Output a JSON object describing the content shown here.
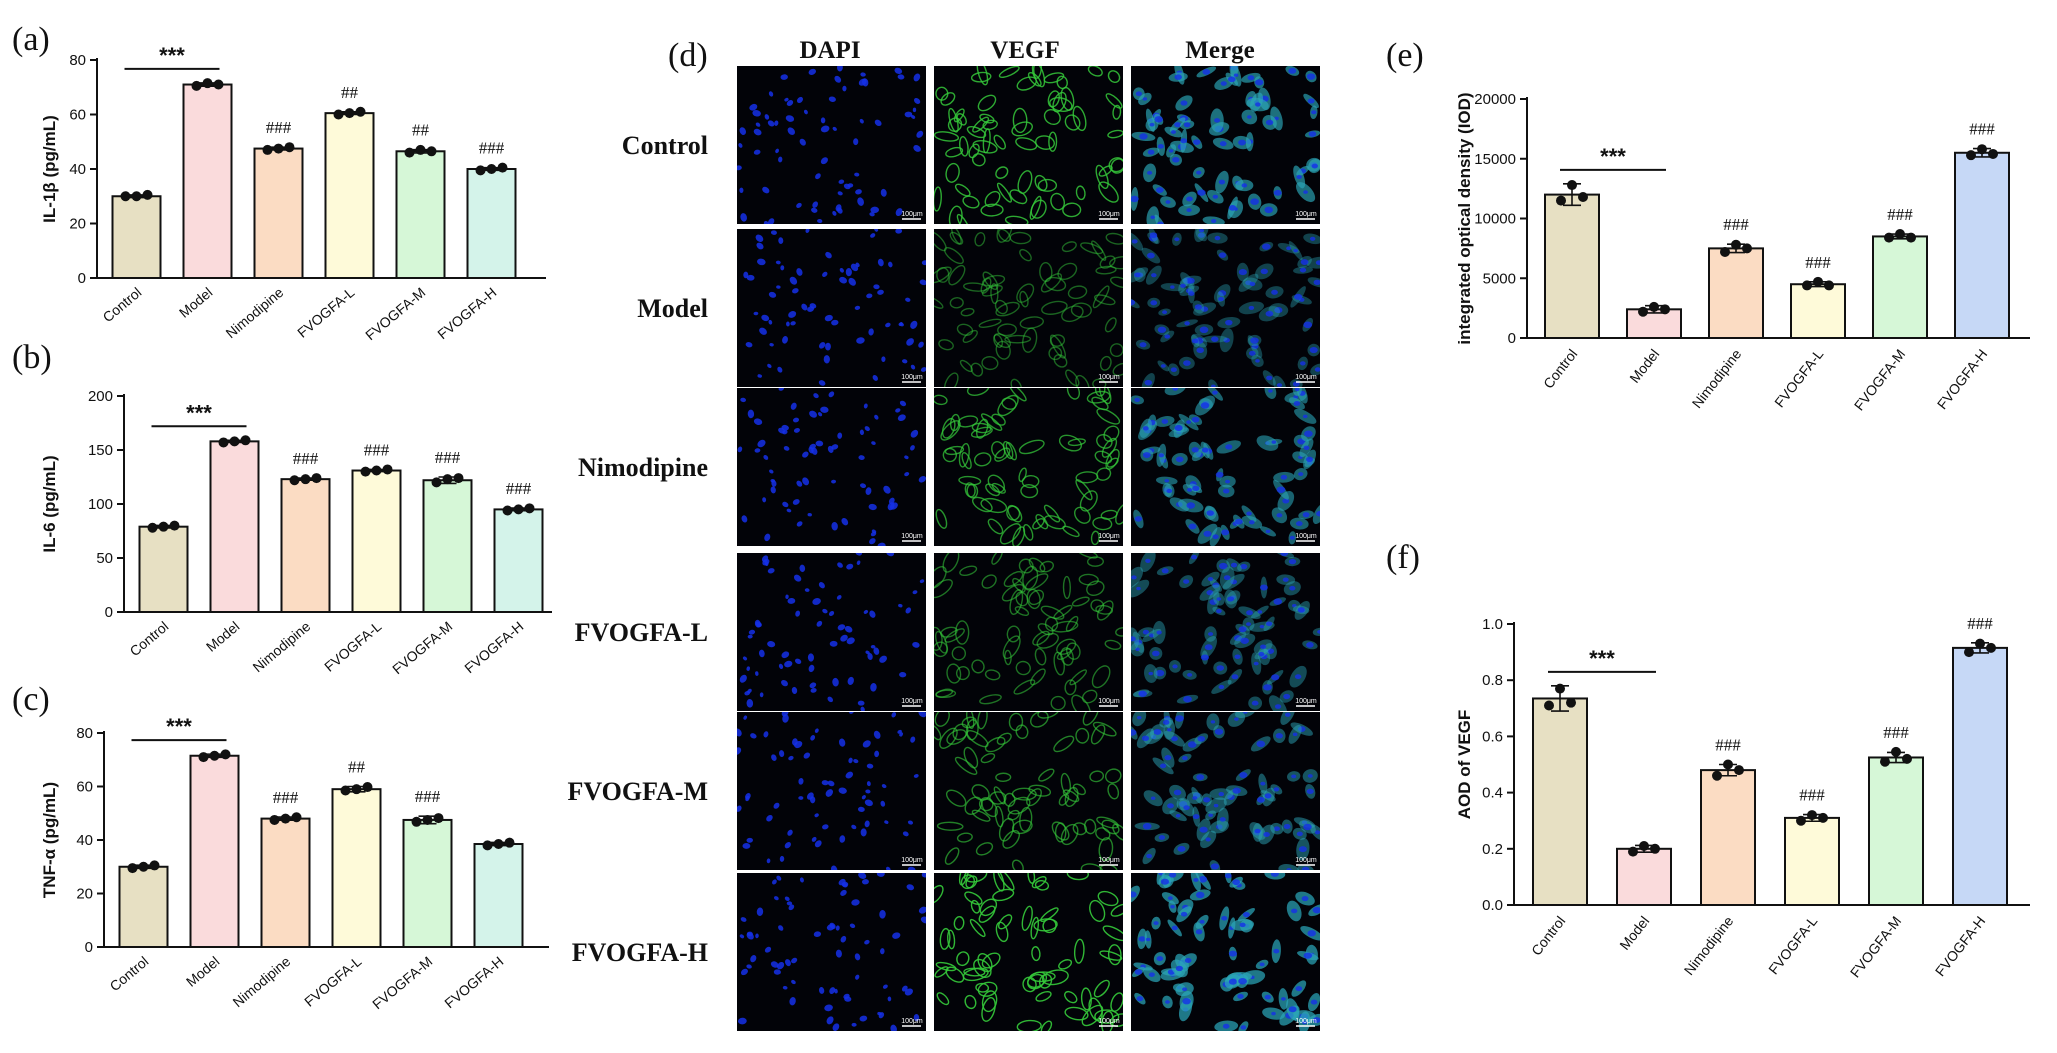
{
  "panel_letters": {
    "a": "(a)",
    "b": "(b)",
    "c": "(c)",
    "d": "(d)",
    "e": "(e)",
    "f": "(f)"
  },
  "chart_data": [
    {
      "id": "a",
      "type": "bar",
      "categories": [
        "Control",
        "Model",
        "Nimodipine",
        "FVOGFA-L",
        "FVOGFA-M",
        "FVOGFA-H"
      ],
      "values": [
        30,
        71,
        47.5,
        60.5,
        46.5,
        40
      ],
      "points": [
        [
          30,
          30,
          30.5
        ],
        [
          70.5,
          71.5,
          71
        ],
        [
          47,
          47.5,
          48
        ],
        [
          60,
          60.5,
          61
        ],
        [
          46,
          47,
          46.5
        ],
        [
          39.5,
          40,
          40.5
        ]
      ],
      "sd": [
        0.5,
        0.6,
        0.5,
        0.5,
        0.6,
        0.5
      ],
      "ylabel": "IL-1β (pg/mL)",
      "ylim": [
        0,
        80
      ],
      "yticks": [
        0,
        20,
        40,
        60,
        80
      ],
      "annotations": [
        "",
        "",
        "###",
        "##",
        "##",
        "###"
      ],
      "bracket": "***"
    },
    {
      "id": "b",
      "type": "bar",
      "categories": [
        "Control",
        "Model",
        "Nimodipine",
        "FVOGFA-L",
        "FVOGFA-M",
        "FVOGFA-H"
      ],
      "values": [
        79,
        158,
        123,
        131,
        122,
        95
      ],
      "points": [
        [
          78,
          79,
          80
        ],
        [
          157,
          158,
          159
        ],
        [
          122,
          123,
          124
        ],
        [
          130,
          131,
          132
        ],
        [
          120,
          123,
          124
        ],
        [
          94,
          95,
          96
        ]
      ],
      "sd": [
        1.2,
        1.0,
        1.0,
        1.0,
        3.0,
        1.2
      ],
      "ylabel": "IL-6 (pg/mL)",
      "ylim": [
        0,
        200
      ],
      "yticks": [
        0,
        50,
        100,
        150,
        200
      ],
      "annotations": [
        "",
        "",
        "###",
        "###",
        "###",
        "###"
      ],
      "bracket": "***"
    },
    {
      "id": "c",
      "type": "bar",
      "categories": [
        "Control",
        "Model",
        "Nimodipine",
        "FVOGFA-L",
        "FVOGFA-M",
        "FVOGFA-H"
      ],
      "values": [
        30,
        71.5,
        48,
        59,
        47.5,
        38.5
      ],
      "points": [
        [
          29.5,
          30,
          30.5
        ],
        [
          71,
          71.5,
          72
        ],
        [
          47.5,
          48,
          48.5
        ],
        [
          58.5,
          59,
          59.8
        ],
        [
          46.8,
          47.5,
          48.2
        ],
        [
          38,
          38.5,
          39
        ]
      ],
      "sd": [
        0.6,
        0.6,
        0.6,
        1.0,
        1.4,
        0.6
      ],
      "ylabel": "TNF-α (pg/mL)",
      "ylim": [
        0,
        80
      ],
      "yticks": [
        0,
        20,
        40,
        60,
        80
      ],
      "annotations": [
        "",
        "",
        "###",
        "##",
        "###",
        ""
      ],
      "bracket": "***"
    },
    {
      "id": "e",
      "type": "bar",
      "categories": [
        "Control",
        "Model",
        "Nimodipine",
        "FVOGFA-L",
        "FVOGFA-M",
        "FVOGFA-H"
      ],
      "values": [
        12000,
        2400,
        7500,
        4500,
        8500,
        15500
      ],
      "points": [
        [
          11500,
          12800,
          11800
        ],
        [
          2200,
          2600,
          2400
        ],
        [
          7200,
          7800,
          7500
        ],
        [
          4400,
          4700,
          4400
        ],
        [
          8400,
          8700,
          8400
        ],
        [
          15300,
          15800,
          15400
        ]
      ],
      "sd": [
        900,
        300,
        350,
        200,
        200,
        350
      ],
      "ylabel": "integrated optical density (IOD)",
      "ylim": [
        0,
        20000
      ],
      "yticks": [
        0,
        5000,
        10000,
        15000,
        20000
      ],
      "annotations": [
        "",
        "",
        "###",
        "###",
        "###",
        "###"
      ],
      "bracket": "***"
    },
    {
      "id": "f",
      "type": "bar",
      "categories": [
        "Control",
        "Model",
        "Nimodipine",
        "FVOGFA-L",
        "FVOGFA-M",
        "FVOGFA-H"
      ],
      "values": [
        0.735,
        0.2,
        0.48,
        0.31,
        0.525,
        0.915
      ],
      "points": [
        [
          0.71,
          0.77,
          0.72
        ],
        [
          0.19,
          0.21,
          0.2
        ],
        [
          0.46,
          0.5,
          0.48
        ],
        [
          0.3,
          0.32,
          0.31
        ],
        [
          0.51,
          0.545,
          0.52
        ],
        [
          0.9,
          0.93,
          0.915
        ]
      ],
      "sd": [
        0.045,
        0.012,
        0.02,
        0.012,
        0.018,
        0.018
      ],
      "ylabel": "AOD of VEGF",
      "ylim": [
        0,
        1.0
      ],
      "yticks": [
        0.0,
        0.2,
        0.4,
        0.6,
        0.8,
        1.0
      ],
      "annotations": [
        "",
        "",
        "###",
        "###",
        "###",
        "###"
      ],
      "bracket": "***"
    }
  ],
  "micrographs": {
    "columns": [
      "DAPI",
      "VEGF",
      "Merge"
    ],
    "rows": [
      "Control",
      "Model",
      "Nimodipine",
      "FVOGFA-L",
      "FVOGFA-M",
      "FVOGFA-H"
    ],
    "vegf_intensity": [
      0.85,
      0.35,
      0.7,
      0.45,
      0.55,
      0.95
    ],
    "scale_bar_label": "100μm"
  },
  "colors": {
    "bar_fills": [
      "#e7e0c3",
      "#fadbdc",
      "#fbdcc3",
      "#fefad9",
      "#d6f7d7",
      "#d4f3ea"
    ],
    "bar_fills_e": [
      "#e7e0c3",
      "#fadbdc",
      "#fbdcc3",
      "#fefad9",
      "#d6f7d7",
      "#c6d8f6"
    ],
    "bar_stroke": "#111111",
    "dapi": "#1530e8",
    "vegf": "#35c83a",
    "merge_cell": "#2ba6b8"
  }
}
